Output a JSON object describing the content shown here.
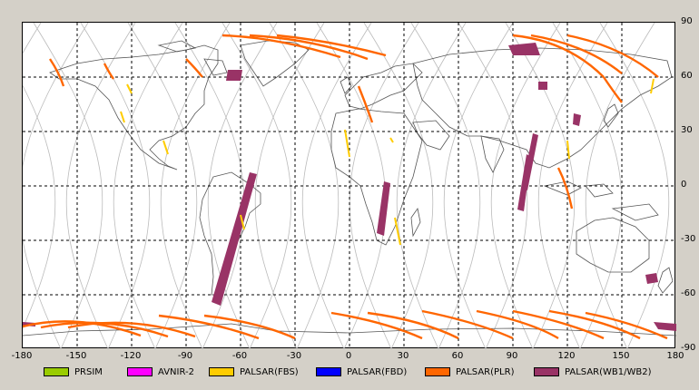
{
  "map": {
    "x_ticks": [
      "-180",
      "-150",
      "-120",
      "-90",
      "-60",
      "-30",
      "0",
      "30",
      "60",
      "90",
      "120",
      "150",
      "180"
    ],
    "y_ticks": [
      "90",
      "60",
      "30",
      "0",
      "-30",
      "-60",
      "-90"
    ],
    "lon_range": [
      -180,
      180
    ],
    "lat_range": [
      -90,
      90
    ],
    "grid": "dashed, every 30 degrees",
    "background_color": "#ffffff"
  },
  "legend": {
    "items": [
      {
        "label": "PRSIM",
        "color": "#99cc00"
      },
      {
        "label": "AVNIR-2",
        "color": "#ff00ff"
      },
      {
        "label": "PALSAR(FBS)",
        "color": "#ffcc00"
      },
      {
        "label": "PALSAR(FBD)",
        "color": "#0000ff"
      },
      {
        "label": "PALSAR(PLR)",
        "color": "#ff6600"
      },
      {
        "label": "PALSAR(WB1/WB2)",
        "color": "#993366"
      }
    ]
  }
}
